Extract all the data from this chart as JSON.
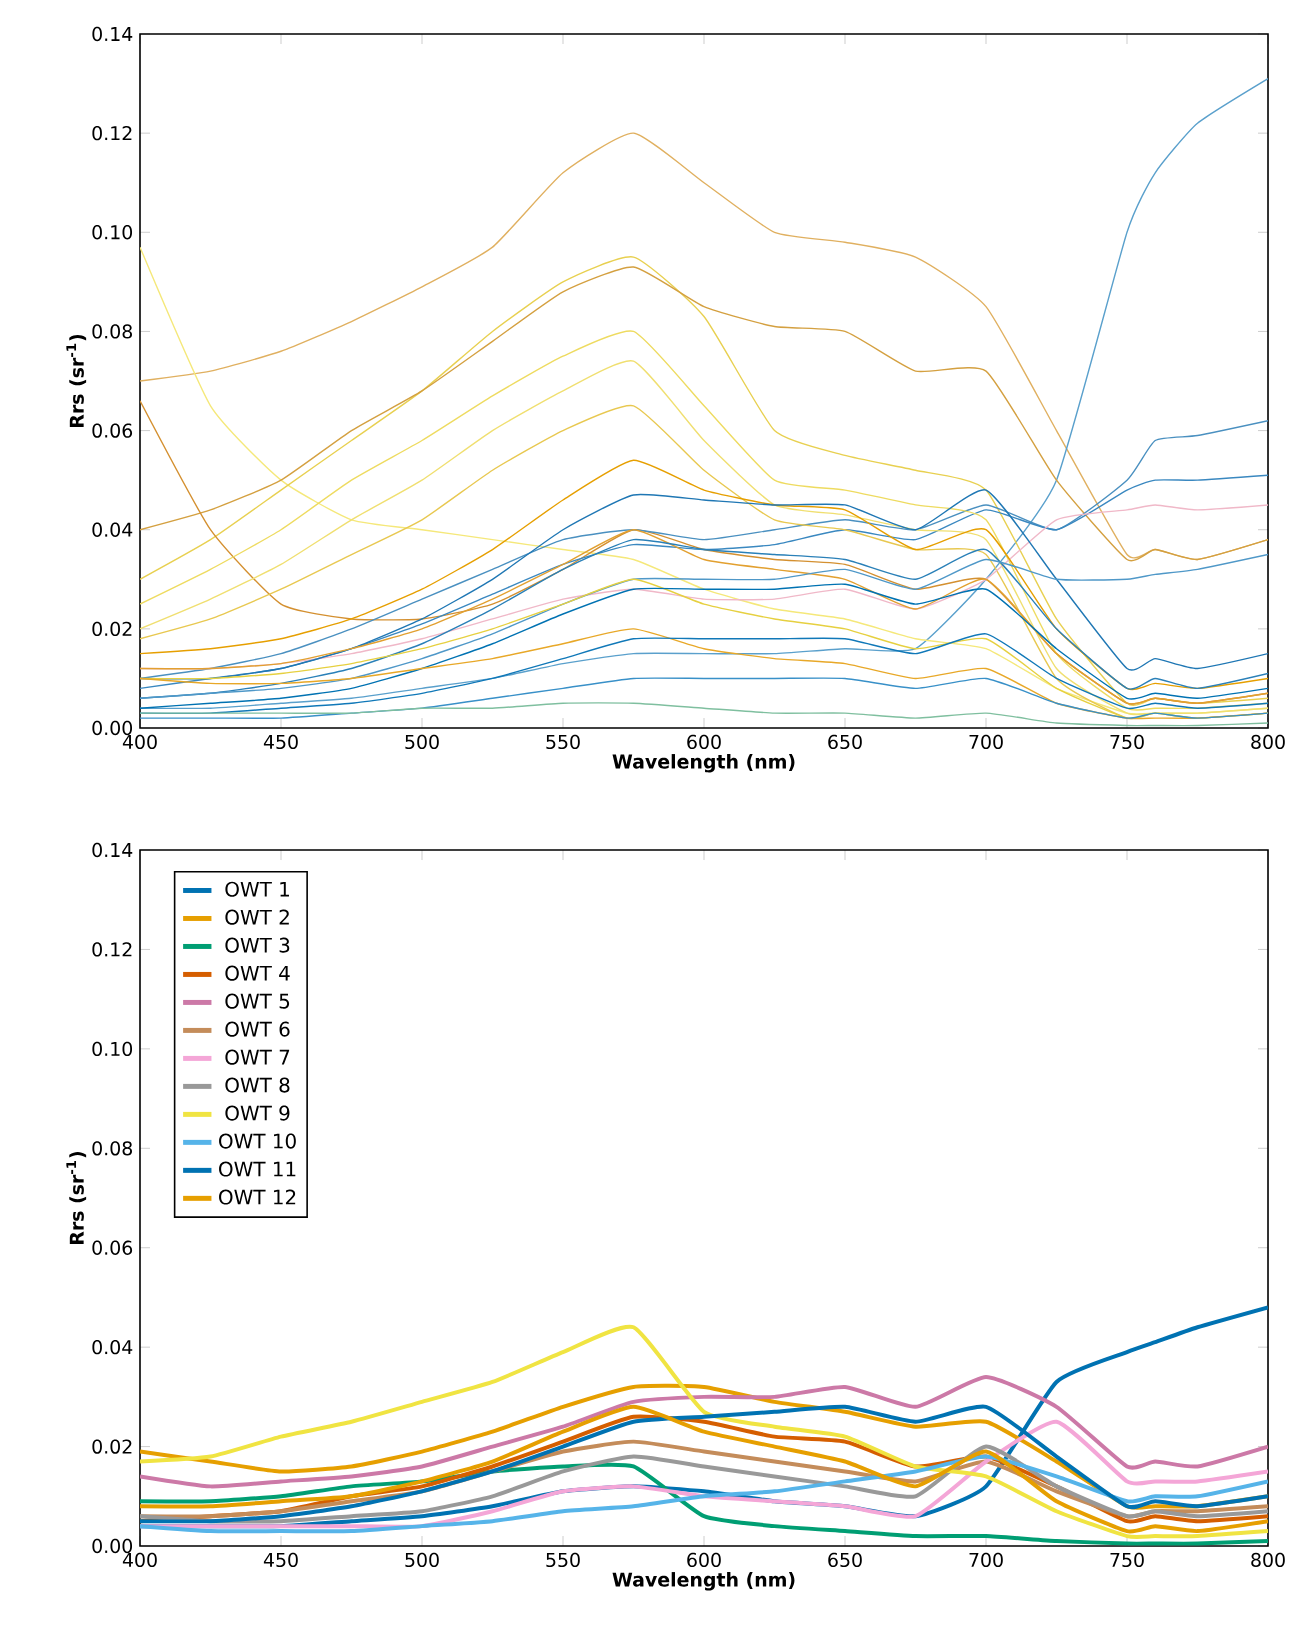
{
  "chart_data": [
    {
      "type": "line",
      "xlabel": "Wavelength (nm)",
      "ylabel": "Rrs (sr$^{-1}$)",
      "x": [
        400,
        425,
        450,
        475,
        500,
        525,
        550,
        575,
        600,
        625,
        650,
        675,
        700,
        725,
        750,
        760,
        775,
        800
      ],
      "xlim": [
        400,
        800
      ],
      "xticks": [
        400,
        450,
        500,
        550,
        600,
        650,
        700,
        750,
        800
      ],
      "ylim": [
        0,
        0.14
      ],
      "yticks": [
        {
          "value": 0,
          "label": "0.00"
        },
        {
          "value": 0.02,
          "label": "0.02"
        },
        {
          "value": 0.04,
          "label": "0.04"
        },
        {
          "value": 0.06,
          "label": "0.06"
        },
        {
          "value": 0.08,
          "label": "0.08"
        },
        {
          "value": 0.1,
          "label": "0.10"
        },
        {
          "value": 0.12,
          "label": "0.12"
        },
        {
          "value": 0.14,
          "label": "0.14"
        }
      ],
      "series": [
        {
          "color": "#e0b060",
          "values": [
            0.07,
            0.072,
            0.076,
            0.082,
            0.089,
            0.097,
            0.112,
            0.12,
            0.11,
            0.1,
            0.098,
            0.095,
            0.085,
            0.06,
            0.035,
            0.036,
            0.034,
            0.038
          ]
        },
        {
          "color": "#5aa0cc",
          "values": [
            0.004,
            0.004,
            0.005,
            0.006,
            0.008,
            0.01,
            0.013,
            0.015,
            0.015,
            0.015,
            0.016,
            0.016,
            0.03,
            0.05,
            0.1,
            0.112,
            0.122,
            0.131
          ]
        },
        {
          "color": "#f5e87a",
          "values": [
            0.097,
            0.065,
            0.05,
            0.042,
            0.04,
            0.038,
            0.036,
            0.034,
            0.028,
            0.024,
            0.022,
            0.018,
            0.016,
            0.008,
            0.003,
            0.003,
            0.003,
            0.004
          ]
        },
        {
          "color": "#e8d050",
          "values": [
            0.03,
            0.038,
            0.048,
            0.058,
            0.068,
            0.08,
            0.09,
            0.095,
            0.083,
            0.06,
            0.055,
            0.052,
            0.048,
            0.022,
            0.005,
            0.006,
            0.005,
            0.006
          ]
        },
        {
          "color": "#d4a040",
          "values": [
            0.04,
            0.044,
            0.05,
            0.06,
            0.068,
            0.078,
            0.088,
            0.093,
            0.085,
            0.081,
            0.08,
            0.072,
            0.072,
            0.05,
            0.034,
            0.036,
            0.034,
            0.038
          ]
        },
        {
          "color": "#d49030",
          "values": [
            0.066,
            0.04,
            0.025,
            0.022,
            0.022,
            0.025,
            0.032,
            0.04,
            0.036,
            0.034,
            0.033,
            0.028,
            0.03,
            0.015,
            0.005,
            0.006,
            0.005,
            0.007
          ]
        },
        {
          "color": "#4a90c0",
          "values": [
            0.01,
            0.012,
            0.015,
            0.02,
            0.026,
            0.032,
            0.038,
            0.04,
            0.038,
            0.04,
            0.042,
            0.04,
            0.045,
            0.04,
            0.05,
            0.058,
            0.059,
            0.062
          ]
        },
        {
          "color": "#3a88c0",
          "values": [
            0.008,
            0.01,
            0.012,
            0.016,
            0.021,
            0.027,
            0.033,
            0.037,
            0.036,
            0.037,
            0.04,
            0.038,
            0.044,
            0.04,
            0.048,
            0.05,
            0.05,
            0.051
          ]
        },
        {
          "color": "#eedb60",
          "values": [
            0.025,
            0.032,
            0.04,
            0.05,
            0.058,
            0.067,
            0.075,
            0.08,
            0.065,
            0.05,
            0.048,
            0.045,
            0.042,
            0.015,
            0.004,
            0.004,
            0.004,
            0.005
          ]
        },
        {
          "color": "#f0df70",
          "values": [
            0.02,
            0.026,
            0.033,
            0.042,
            0.05,
            0.06,
            0.068,
            0.074,
            0.058,
            0.045,
            0.043,
            0.04,
            0.038,
            0.012,
            0.003,
            0.003,
            0.003,
            0.004
          ]
        },
        {
          "color": "#e8c850",
          "values": [
            0.018,
            0.022,
            0.028,
            0.035,
            0.042,
            0.052,
            0.06,
            0.065,
            0.052,
            0.042,
            0.04,
            0.036,
            0.035,
            0.01,
            0.002,
            0.003,
            0.002,
            0.003
          ]
        },
        {
          "color": "#f0b8c8",
          "values": [
            0.012,
            0.012,
            0.013,
            0.015,
            0.018,
            0.022,
            0.026,
            0.028,
            0.026,
            0.026,
            0.028,
            0.024,
            0.03,
            0.042,
            0.044,
            0.045,
            0.044,
            0.045
          ]
        },
        {
          "color": "#e69f00",
          "values": [
            0.015,
            0.016,
            0.018,
            0.022,
            0.028,
            0.036,
            0.046,
            0.054,
            0.048,
            0.045,
            0.044,
            0.036,
            0.04,
            0.02,
            0.008,
            0.009,
            0.008,
            0.01
          ]
        },
        {
          "color": "#1f77b4",
          "values": [
            0.01,
            0.01,
            0.012,
            0.016,
            0.022,
            0.03,
            0.04,
            0.047,
            0.046,
            0.045,
            0.045,
            0.04,
            0.048,
            0.03,
            0.012,
            0.014,
            0.012,
            0.015
          ]
        },
        {
          "color": "#e2a030",
          "values": [
            0.012,
            0.012,
            0.013,
            0.016,
            0.02,
            0.026,
            0.033,
            0.04,
            0.034,
            0.032,
            0.03,
            0.024,
            0.03,
            0.015,
            0.005,
            0.006,
            0.005,
            0.007
          ]
        },
        {
          "color": "#2a80b8",
          "values": [
            0.006,
            0.007,
            0.009,
            0.012,
            0.017,
            0.024,
            0.032,
            0.038,
            0.036,
            0.035,
            0.034,
            0.03,
            0.036,
            0.02,
            0.008,
            0.01,
            0.008,
            0.011
          ]
        },
        {
          "color": "#4f98c8",
          "values": [
            0.006,
            0.007,
            0.008,
            0.01,
            0.014,
            0.019,
            0.025,
            0.03,
            0.03,
            0.03,
            0.032,
            0.028,
            0.034,
            0.03,
            0.03,
            0.031,
            0.032,
            0.035
          ]
        },
        {
          "color": "#e6d040",
          "values": [
            0.01,
            0.01,
            0.011,
            0.013,
            0.016,
            0.02,
            0.025,
            0.03,
            0.025,
            0.022,
            0.02,
            0.016,
            0.018,
            0.008,
            0.002,
            0.003,
            0.002,
            0.003
          ]
        },
        {
          "color": "#0072b2",
          "values": [
            0.004,
            0.005,
            0.006,
            0.008,
            0.012,
            0.017,
            0.023,
            0.028,
            0.028,
            0.028,
            0.029,
            0.025,
            0.028,
            0.016,
            0.006,
            0.007,
            0.006,
            0.008
          ]
        },
        {
          "color": "#e8a828",
          "values": [
            0.01,
            0.009,
            0.009,
            0.01,
            0.012,
            0.014,
            0.017,
            0.02,
            0.016,
            0.014,
            0.013,
            0.01,
            0.012,
            0.005,
            0.002,
            0.002,
            0.002,
            0.003
          ]
        },
        {
          "color": "#1078b8",
          "values": [
            0.003,
            0.003,
            0.004,
            0.005,
            0.007,
            0.01,
            0.014,
            0.018,
            0.018,
            0.018,
            0.018,
            0.015,
            0.019,
            0.01,
            0.004,
            0.005,
            0.004,
            0.005
          ]
        },
        {
          "color": "#3890c8",
          "values": [
            0.002,
            0.002,
            0.002,
            0.003,
            0.004,
            0.006,
            0.008,
            0.01,
            0.01,
            0.01,
            0.01,
            0.008,
            0.01,
            0.005,
            0.002,
            0.003,
            0.002,
            0.003
          ]
        },
        {
          "color": "#7fbf9f",
          "values": [
            0.003,
            0.003,
            0.003,
            0.003,
            0.004,
            0.004,
            0.005,
            0.005,
            0.004,
            0.003,
            0.003,
            0.002,
            0.003,
            0.001,
            0.0005,
            0.0005,
            0.0005,
            0.001
          ]
        }
      ]
    },
    {
      "type": "line",
      "xlabel": "Wavelength (nm)",
      "ylabel": "Rrs (sr$^{-1}$)",
      "legend": "top left",
      "x": [
        400,
        425,
        450,
        475,
        500,
        525,
        550,
        575,
        600,
        625,
        650,
        675,
        700,
        725,
        750,
        760,
        775,
        800
      ],
      "xlim": [
        400,
        800
      ],
      "xticks": [
        400,
        450,
        500,
        550,
        600,
        650,
        700,
        750,
        800
      ],
      "ylim": [
        0,
        0.14
      ],
      "yticks": [
        {
          "value": 0,
          "label": "0.00"
        },
        {
          "value": 0.02,
          "label": "0.02"
        },
        {
          "value": 0.04,
          "label": "0.04"
        },
        {
          "value": 0.06,
          "label": "0.06"
        },
        {
          "value": 0.08,
          "label": "0.08"
        },
        {
          "value": 0.1,
          "label": "0.10"
        },
        {
          "value": 0.12,
          "label": "0.12"
        },
        {
          "value": 0.14,
          "label": "0.14"
        }
      ],
      "series": [
        {
          "name": "OWT 1",
          "color": "#0072b2",
          "values": [
            0.004,
            0.004,
            0.004,
            0.005,
            0.006,
            0.008,
            0.011,
            0.012,
            0.011,
            0.009,
            0.008,
            0.006,
            0.012,
            0.033,
            0.039,
            0.041,
            0.044,
            0.048
          ]
        },
        {
          "name": "OWT 2",
          "color": "#e69f00",
          "values": [
            0.019,
            0.017,
            0.015,
            0.016,
            0.019,
            0.023,
            0.028,
            0.032,
            0.032,
            0.029,
            0.027,
            0.024,
            0.025,
            0.017,
            0.008,
            0.008,
            0.008,
            0.01
          ]
        },
        {
          "name": "OWT 3",
          "color": "#009e73",
          "values": [
            0.009,
            0.009,
            0.01,
            0.012,
            0.013,
            0.015,
            0.016,
            0.016,
            0.006,
            0.004,
            0.003,
            0.002,
            0.002,
            0.001,
            0.0005,
            0.0005,
            0.0005,
            0.001
          ]
        },
        {
          "name": "OWT 4",
          "color": "#d55e00",
          "values": [
            0.005,
            0.006,
            0.007,
            0.01,
            0.012,
            0.016,
            0.021,
            0.026,
            0.025,
            0.022,
            0.021,
            0.016,
            0.018,
            0.012,
            0.005,
            0.006,
            0.005,
            0.006
          ]
        },
        {
          "name": "OWT 5",
          "color": "#cc79a7",
          "values": [
            0.014,
            0.012,
            0.013,
            0.014,
            0.016,
            0.02,
            0.024,
            0.029,
            0.03,
            0.03,
            0.032,
            0.028,
            0.034,
            0.028,
            0.016,
            0.017,
            0.016,
            0.02
          ]
        },
        {
          "name": "OWT 6",
          "color": "#c48c5a",
          "values": [
            0.006,
            0.006,
            0.007,
            0.009,
            0.011,
            0.015,
            0.019,
            0.021,
            0.019,
            0.017,
            0.015,
            0.013,
            0.017,
            0.011,
            0.006,
            0.007,
            0.007,
            0.008
          ]
        },
        {
          "name": "OWT 7",
          "color": "#f4a6d7",
          "values": [
            0.004,
            0.004,
            0.004,
            0.004,
            0.004,
            0.007,
            0.011,
            0.012,
            0.01,
            0.009,
            0.008,
            0.006,
            0.017,
            0.025,
            0.013,
            0.013,
            0.013,
            0.015
          ]
        },
        {
          "name": "OWT 8",
          "color": "#999999",
          "values": [
            0.006,
            0.005,
            0.005,
            0.006,
            0.007,
            0.01,
            0.015,
            0.018,
            0.016,
            0.014,
            0.012,
            0.01,
            0.02,
            0.012,
            0.006,
            0.007,
            0.006,
            0.007
          ]
        },
        {
          "name": "OWT 9",
          "color": "#f0e442",
          "values": [
            0.017,
            0.018,
            0.022,
            0.025,
            0.029,
            0.033,
            0.039,
            0.044,
            0.027,
            0.024,
            0.022,
            0.016,
            0.014,
            0.007,
            0.002,
            0.002,
            0.002,
            0.003
          ]
        },
        {
          "name": "OWT 10",
          "color": "#56b4e9",
          "values": [
            0.004,
            0.003,
            0.003,
            0.003,
            0.004,
            0.005,
            0.007,
            0.008,
            0.01,
            0.011,
            0.013,
            0.015,
            0.018,
            0.014,
            0.009,
            0.01,
            0.01,
            0.013
          ]
        },
        {
          "name": "OWT 11",
          "color": "#0072b2",
          "values": [
            0.005,
            0.005,
            0.006,
            0.008,
            0.011,
            0.015,
            0.02,
            0.025,
            0.026,
            0.027,
            0.028,
            0.025,
            0.028,
            0.018,
            0.008,
            0.009,
            0.008,
            0.01
          ]
        },
        {
          "name": "OWT 12",
          "color": "#e69f00",
          "values": [
            0.008,
            0.008,
            0.009,
            0.01,
            0.013,
            0.017,
            0.023,
            0.028,
            0.023,
            0.02,
            0.017,
            0.012,
            0.019,
            0.009,
            0.003,
            0.004,
            0.003,
            0.005
          ]
        }
      ]
    }
  ]
}
